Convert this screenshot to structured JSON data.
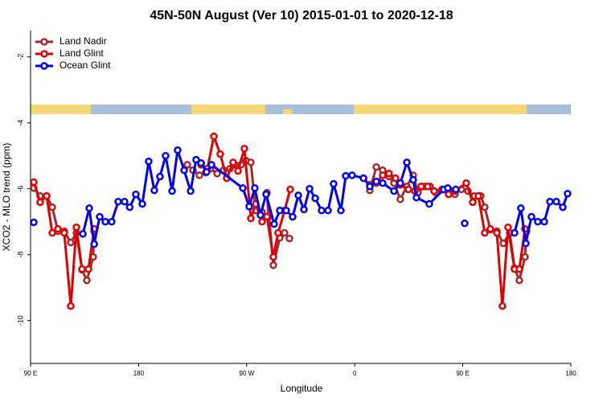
{
  "chart_data": {
    "type": "line",
    "title": "45N-50N August (Ver 10)   2015-01-01 to 2020-12-18",
    "x_label": "Longitude",
    "y_label": "XCO2 - MLO trend (ppm)",
    "xlim": [
      90,
      540
    ],
    "xticks": [
      {
        "value": 90,
        "label": "90 E"
      },
      {
        "value": 180,
        "label": "180"
      },
      {
        "value": 270,
        "label": "90 W"
      },
      {
        "value": 360,
        "label": "0"
      },
      {
        "value": 450,
        "label": "90 E"
      },
      {
        "value": 540,
        "label": "180"
      }
    ],
    "ylim": [
      -11.3,
      -1.2
    ],
    "yticks": [
      -2,
      -4,
      -6,
      -8,
      -10
    ],
    "legend": "upper left",
    "series": [
      {
        "name": "Land Nadir",
        "color": "#a52a2a",
        "x": [
          92.7,
          98.0,
          103.4,
          108.1,
          112.8,
          118.1,
          123.5,
          128.2,
          132.9,
          136.9,
          142.2,
          142.9,
          null,
          220.6,
          225.3,
          230.6,
          235.9,
          240.0,
          245.4,
          250.7,
          256.1,
          260.1,
          265.4,
          269.5,
          273.5,
          277.5,
          282.8,
          288.2,
          286.9,
          292.2,
          297.6,
          301.6,
          305.6,
          null,
          372.6,
          378.0,
          383.3,
          388.6,
          392.7,
          398.0,
          403.4,
          408.7,
          412.7,
          418.1,
          422.8,
          427.5,
          432.8,
          438.2,
          443.5,
          448.9,
          454.3,
          459.6,
          465.0,
          468.3,
          473.0,
          478.4,
          483.7,
          489.1,
          493.1,
          497.1,
          501.8,
          503.1
        ],
        "values": [
          -5.98,
          -6.22,
          -6.22,
          -6.56,
          -7.29,
          -7.29,
          -7.63,
          -7.34,
          -8.46,
          -8.78,
          -8.07,
          -7.29,
          null,
          -5.27,
          -5.44,
          -5.59,
          -5.51,
          -5.39,
          -5.54,
          -5.44,
          -5.39,
          -5.27,
          -5.27,
          -5.15,
          -5.2,
          -6.66,
          -6.71,
          -6.85,
          -6.12,
          -8.32,
          -7.49,
          -7.34,
          -7.51,
          null,
          -6.05,
          -5.34,
          -5.44,
          -5.63,
          -5.83,
          -6.32,
          -5.93,
          -5.59,
          -6.12,
          -5.93,
          -5.93,
          -6.12,
          -6.02,
          -6.07,
          -6.17,
          -6.02,
          -6.07,
          -6.22,
          -6.22,
          -6.56,
          -7.24,
          -7.29,
          -7.66,
          -7.34,
          -8.41,
          -8.78,
          -8.07,
          -7.29
        ]
      },
      {
        "name": "Land Glint",
        "color": "#e00000",
        "x": [
          92.7,
          98.0,
          103.4,
          108.1,
          112.8,
          118.1,
          123.5,
          128.2,
          132.9,
          138.2,
          143.0,
          null,
          232.0,
          237.3,
          242.7,
          248.0,
          253.4,
          258.7,
          262.8,
          268.1,
          273.5,
          277.5,
          282.8,
          286.9,
          292.2,
          296.2,
          301.6,
          306.3,
          null,
          367.3,
          372.6,
          378.0,
          383.3,
          388.6,
          394.0,
          398.0,
          404.7,
          410.1,
          415.4,
          420.8,
          426.1,
          432.8,
          438.2,
          443.5,
          452.9,
          458.3,
          463.0,
          468.3,
          473.0,
          478.4,
          483.0,
          487.7,
          493.1,
          497.1,
          501.8
        ],
        "values": [
          -5.8,
          -6.41,
          -6.22,
          -7.34,
          -7.22,
          -7.34,
          -9.56,
          -7.17,
          -8.44,
          -8.44,
          -7.22,
          null,
          -5.27,
          -5.39,
          -4.41,
          -4.95,
          -5.68,
          -5.2,
          -5.46,
          -4.78,
          -6.9,
          -6.46,
          -7.0,
          -6.85,
          -8.07,
          -7.34,
          -6.66,
          -6.02,
          null,
          -5.68,
          -5.88,
          -5.83,
          -5.59,
          -5.54,
          -5.68,
          -5.88,
          -6.02,
          -6.07,
          -5.93,
          -5.93,
          -6.07,
          -6.02,
          -6.17,
          -6.07,
          -5.83,
          -6.41,
          -6.22,
          -7.34,
          -7.22,
          -7.34,
          -9.56,
          -7.17,
          -8.44,
          -8.44,
          -7.22
        ]
      },
      {
        "name": "Ocean Glint",
        "color": "#0000ee",
        "x": [
          92.7,
          null,
          133.6,
          138.9,
          143.0,
          147.6,
          152.3,
          157.6,
          163.0,
          168.3,
          172.6,
          177.7,
          183.1,
          188.4,
          193.1,
          197.8,
          202.5,
          207.9,
          212.5,
          217.9,
          223.3,
          227.9,
          232.0,
          236.6,
          240.7,
          266.8,
          272.1,
          276.8,
          281.5,
          286.2,
          292.9,
          297.6,
          302.9,
          308.3,
          313.0,
          317.7,
          322.4,
          327.1,
          332.4,
          337.8,
          342.4,
          348.5,
          352.5,
          357.8,
          367.3,
          372.6,
          378.0,
          383.3,
          392.7,
          398.0,
          403.4,
          408.7,
          411.4,
          422.1,
          434.2,
          437.5,
          444.2,
          null,
          451.6,
          null,
          493.1,
          498.4,
          502.5,
          507.2,
          512.5,
          517.9,
          522.6,
          527.9,
          533.3,
          537.3
        ],
        "values": [
          -7.02,
          null,
          -7.37,
          -6.59,
          -7.68,
          -6.85,
          -7.0,
          -7.0,
          -6.39,
          -6.39,
          -6.56,
          -6.17,
          -6.46,
          -5.17,
          -6.05,
          -5.63,
          -5.0,
          -6.07,
          -4.83,
          -5.44,
          -6.07,
          -5.12,
          -5.22,
          -5.49,
          -5.27,
          -5.98,
          -6.54,
          -5.98,
          -6.8,
          -6.17,
          -7.07,
          -6.66,
          -6.66,
          -6.85,
          -6.2,
          -6.63,
          -6.0,
          -6.29,
          -6.66,
          -6.66,
          -5.85,
          -6.66,
          -5.61,
          -5.59,
          -5.68,
          -5.93,
          -5.78,
          -5.83,
          -6.07,
          -5.83,
          -5.2,
          -5.73,
          -6.27,
          -6.46,
          -6.02,
          -5.98,
          -6.02,
          null,
          -7.05,
          null,
          -7.34,
          -6.59,
          -7.66,
          -6.85,
          -7.0,
          -7.0,
          -6.39,
          -6.39,
          -6.56,
          -6.15
        ]
      }
    ]
  }
}
